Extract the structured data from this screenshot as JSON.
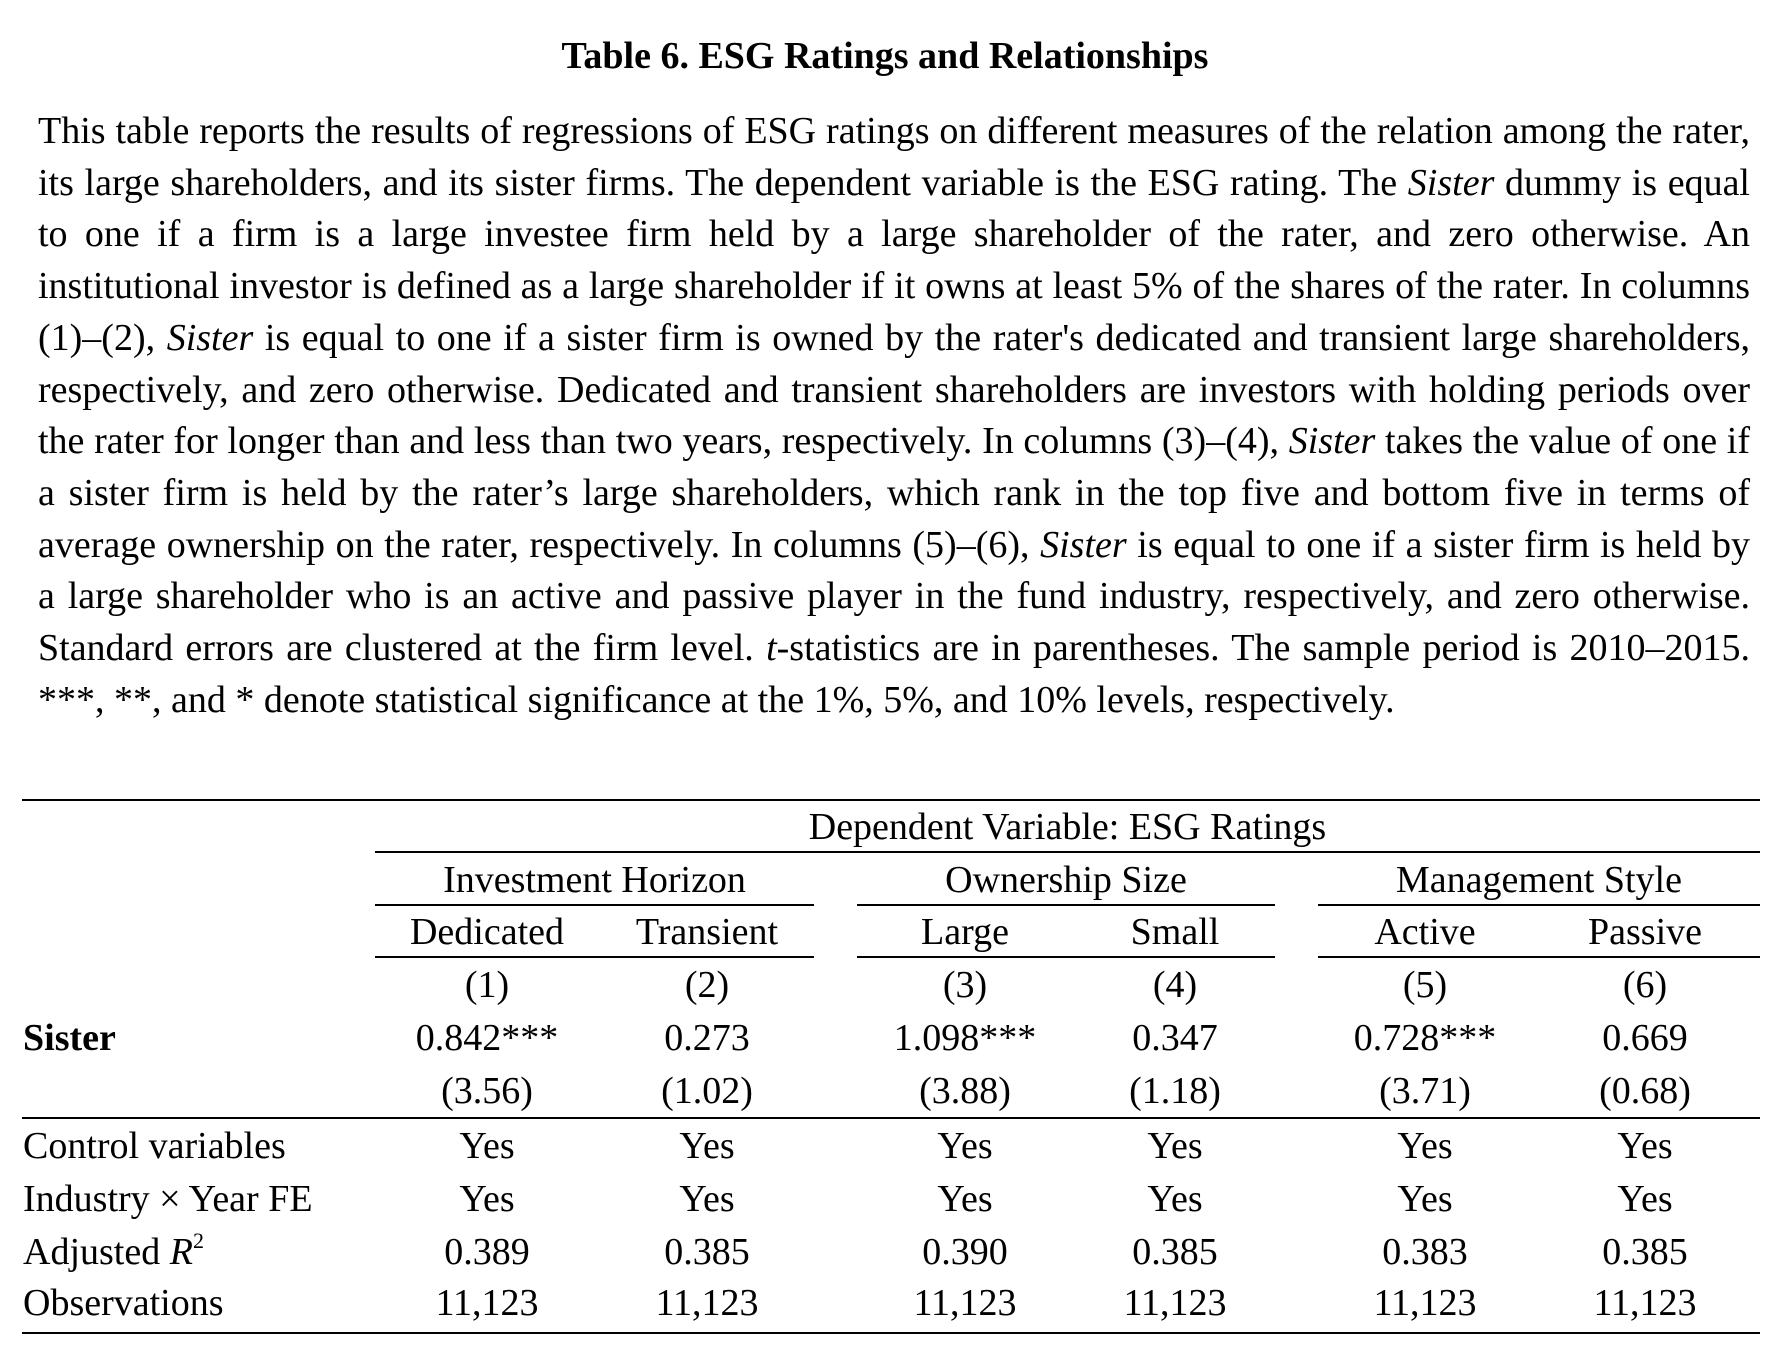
{
  "title": "Table 6. ESG Ratings and Relationships",
  "caption": {
    "s1": "This table reports the results of regressions of ESG ratings on different measures of the relation among the rater, its large shareholders, and its sister firms. The dependent variable is the ESG rating. The ",
    "sister_a": "Sister",
    "s2": " dummy is equal to one if a firm is a large investee firm held by a large shareholder of the rater, and zero otherwise. An institutional investor is defined as a large shareholder if it owns at least 5% of the shares of the rater. In columns (1)–(2), ",
    "sister_b": "Sister",
    "s3": " is equal to one if a sister firm is owned by the rater's dedicated and transient large shareholders, respectively, and zero otherwise. Dedicated and transient shareholders are investors with holding periods over the rater for longer than and less than two years, respectively. In columns (3)–(4), ",
    "sister_c": "Sister",
    "s4": " takes the value of one if a sister firm is held by the rater’s large shareholders, which rank in the top five and bottom five in terms of average ownership on the rater, respectively. In columns (5)–(6), ",
    "sister_d": "Sister",
    "s5": " is equal to one if a sister firm is held by a large shareholder who is an active and passive player in the fund industry, respectively, and zero otherwise. Standard errors are clustered at the firm level. ",
    "t_italic": "t",
    "s6": "-statistics are in parentheses. The sample period is 2010–2015. ***, **, and * denote statistical significance at the 1%, 5%, and 10% levels, respectively."
  },
  "table": {
    "dependent_variable": "Dependent Variable: ESG Ratings",
    "groups": [
      "Investment Horizon",
      "Ownership Size",
      "Management Style"
    ],
    "columns": [
      "Dedicated",
      "Transient",
      "Large",
      "Small",
      "Active",
      "Passive"
    ],
    "column_numbers": [
      "(1)",
      "(2)",
      "(3)",
      "(4)",
      "(5)",
      "(6)"
    ],
    "sister_row": {
      "label": "Sister",
      "coefficients": [
        "0.842***",
        "0.273",
        "1.098***",
        "0.347",
        "0.728***",
        "0.669"
      ],
      "t_stats": [
        "(3.56)",
        "(1.02)",
        "(3.88)",
        "(1.18)",
        "(3.71)",
        "(0.68)"
      ]
    },
    "controls_row": {
      "label": "Control variables",
      "values": [
        "Yes",
        "Yes",
        "Yes",
        "Yes",
        "Yes",
        "Yes"
      ]
    },
    "fe_row": {
      "label": "Industry × Year FE",
      "values": [
        "Yes",
        "Yes",
        "Yes",
        "Yes",
        "Yes",
        "Yes"
      ]
    },
    "r2_row": {
      "label_main": "Adjusted ",
      "label_var": "R",
      "label_sup": "2",
      "values": [
        "0.389",
        "0.385",
        "0.390",
        "0.385",
        "0.383",
        "0.385"
      ]
    },
    "obs_row": {
      "label": "Observations",
      "values": [
        "11,123",
        "11,123",
        "11,123",
        "11,123",
        "11,123",
        "11,123"
      ]
    }
  }
}
